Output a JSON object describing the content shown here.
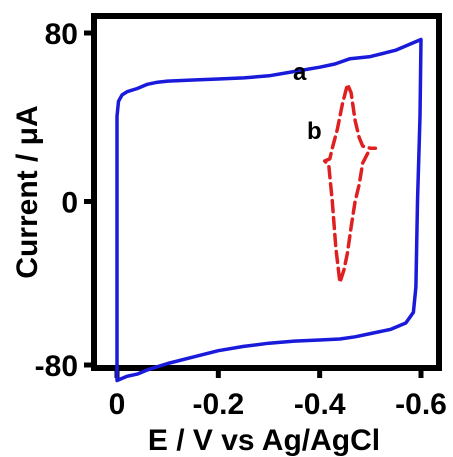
{
  "chart_data": {
    "type": "line",
    "title": "",
    "xlabel": "E / V vs Ag/AgCl",
    "ylabel": "Current / μA",
    "xlim": [
      0,
      -0.6
    ],
    "ylim": [
      -80,
      80
    ],
    "x_axis_reversed": true,
    "x_ticks": [
      "0",
      "-0.2",
      "-0.4",
      "-0.6"
    ],
    "y_ticks": [
      "80",
      "0",
      "-80"
    ],
    "grid": false,
    "legend": "none",
    "series": [
      {
        "name": "a",
        "color": "#1a1adb",
        "style": "solid",
        "points": [
          [
            0.0,
            40
          ],
          [
            -0.003,
            47
          ],
          [
            -0.01,
            50
          ],
          [
            -0.02,
            51.5
          ],
          [
            -0.04,
            53
          ],
          [
            -0.06,
            55
          ],
          [
            -0.08,
            56
          ],
          [
            -0.1,
            56.5
          ],
          [
            -0.15,
            57
          ],
          [
            -0.2,
            57.5
          ],
          [
            -0.25,
            58
          ],
          [
            -0.3,
            59
          ],
          [
            -0.35,
            61
          ],
          [
            -0.4,
            63
          ],
          [
            -0.43,
            64.5
          ],
          [
            -0.46,
            67
          ],
          [
            -0.5,
            68
          ],
          [
            -0.55,
            71
          ],
          [
            -0.58,
            74
          ],
          [
            -0.6,
            76
          ],
          [
            -0.598,
            40
          ],
          [
            -0.593,
            0
          ],
          [
            -0.59,
            -40
          ],
          [
            -0.585,
            -52
          ],
          [
            -0.57,
            -57
          ],
          [
            -0.54,
            -60
          ],
          [
            -0.5,
            -62
          ],
          [
            -0.47,
            -63.5
          ],
          [
            -0.44,
            -64.5
          ],
          [
            -0.4,
            -65
          ],
          [
            -0.35,
            -65.5
          ],
          [
            -0.3,
            -66.5
          ],
          [
            -0.25,
            -68
          ],
          [
            -0.2,
            -70
          ],
          [
            -0.15,
            -73
          ],
          [
            -0.1,
            -76
          ],
          [
            -0.08,
            -77.5
          ],
          [
            -0.06,
            -79
          ],
          [
            -0.04,
            -81
          ],
          [
            -0.02,
            -82
          ],
          [
            0.0,
            -84
          ],
          [
            0.0,
            -60
          ],
          [
            0.0,
            0
          ],
          [
            0.0,
            40
          ]
        ]
      },
      {
        "name": "b",
        "color": "#e02020",
        "style": "dashed",
        "points": [
          [
            -0.41,
            19
          ],
          [
            -0.42,
            20
          ],
          [
            -0.425,
            25
          ],
          [
            -0.435,
            34
          ],
          [
            -0.445,
            46
          ],
          [
            -0.455,
            55
          ],
          [
            -0.462,
            51
          ],
          [
            -0.47,
            38
          ],
          [
            -0.478,
            30
          ],
          [
            -0.485,
            26
          ],
          [
            -0.5,
            25
          ],
          [
            -0.51,
            25
          ],
          [
            -0.5,
            25
          ],
          [
            -0.485,
            18
          ],
          [
            -0.478,
            8
          ],
          [
            -0.47,
            0
          ],
          [
            -0.462,
            -12
          ],
          [
            -0.455,
            -24
          ],
          [
            -0.448,
            -32
          ],
          [
            -0.44,
            -38
          ],
          [
            -0.432,
            -22
          ],
          [
            -0.425,
            0
          ],
          [
            -0.42,
            12
          ],
          [
            -0.418,
            17
          ],
          [
            -0.41,
            19
          ]
        ]
      }
    ],
    "series_labels": [
      "a",
      "b"
    ]
  }
}
